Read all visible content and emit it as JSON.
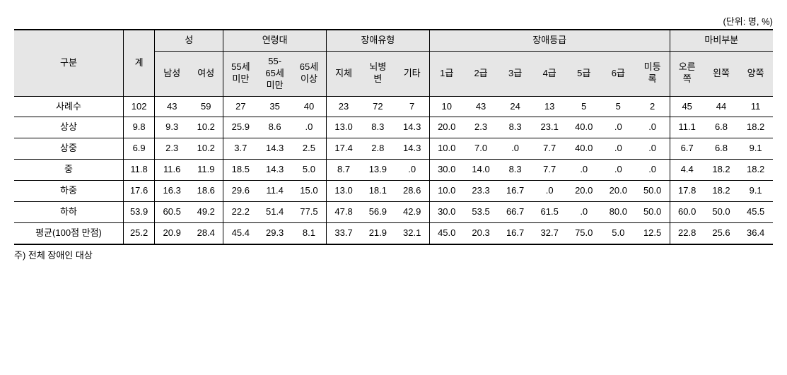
{
  "unit_label": "(단위: 명, %)",
  "note": "주) 전체 장애인 대상",
  "headers": {
    "gubun": "구분",
    "gye": "계",
    "group_sex": "성",
    "group_age": "연령대",
    "group_type": "장애유형",
    "group_grade": "장애등급",
    "group_part": "마비부분",
    "sex_m": "남성",
    "sex_f": "여성",
    "age1": "55세\n미만",
    "age2": "55-\n65세\n미만",
    "age3": "65세\n이상",
    "type1": "지체",
    "type2": "뇌병\n변",
    "type3": "기타",
    "g1": "1급",
    "g2": "2급",
    "g3": "3급",
    "g4": "4급",
    "g5": "5급",
    "g6": "6급",
    "g7": "미등\n록",
    "p1": "오른\n쪽",
    "p2": "왼쪽",
    "p3": "양쪽"
  },
  "rows": [
    {
      "label": "사례수",
      "vals": [
        "102",
        "43",
        "59",
        "27",
        "35",
        "40",
        "23",
        "72",
        "7",
        "10",
        "43",
        "24",
        "13",
        "5",
        "5",
        "2",
        "45",
        "44",
        "11"
      ]
    },
    {
      "label": "상상",
      "vals": [
        "9.8",
        "9.3",
        "10.2",
        "25.9",
        "8.6",
        ".0",
        "13.0",
        "8.3",
        "14.3",
        "20.0",
        "2.3",
        "8.3",
        "23.1",
        "40.0",
        ".0",
        ".0",
        "11.1",
        "6.8",
        "18.2"
      ]
    },
    {
      "label": "상중",
      "vals": [
        "6.9",
        "2.3",
        "10.2",
        "3.7",
        "14.3",
        "2.5",
        "17.4",
        "2.8",
        "14.3",
        "10.0",
        "7.0",
        ".0",
        "7.7",
        "40.0",
        ".0",
        ".0",
        "6.7",
        "6.8",
        "9.1"
      ]
    },
    {
      "label": "중",
      "vals": [
        "11.8",
        "11.6",
        "11.9",
        "18.5",
        "14.3",
        "5.0",
        "8.7",
        "13.9",
        ".0",
        "30.0",
        "14.0",
        "8.3",
        "7.7",
        ".0",
        ".0",
        ".0",
        "4.4",
        "18.2",
        "18.2"
      ]
    },
    {
      "label": "하중",
      "vals": [
        "17.6",
        "16.3",
        "18.6",
        "29.6",
        "11.4",
        "15.0",
        "13.0",
        "18.1",
        "28.6",
        "10.0",
        "23.3",
        "16.7",
        ".0",
        "20.0",
        "20.0",
        "50.0",
        "17.8",
        "18.2",
        "9.1"
      ]
    },
    {
      "label": "하하",
      "vals": [
        "53.9",
        "60.5",
        "49.2",
        "22.2",
        "51.4",
        "77.5",
        "47.8",
        "56.9",
        "42.9",
        "30.0",
        "53.5",
        "66.7",
        "61.5",
        ".0",
        "80.0",
        "50.0",
        "60.0",
        "50.0",
        "45.5"
      ]
    },
    {
      "label": "평균(100점 만점)",
      "vals": [
        "25.2",
        "20.9",
        "28.4",
        "45.4",
        "29.3",
        "8.1",
        "33.7",
        "21.9",
        "32.1",
        "45.0",
        "20.3",
        "16.7",
        "32.7",
        "75.0",
        "5.0",
        "12.5",
        "22.8",
        "25.6",
        "36.4"
      ]
    }
  ]
}
